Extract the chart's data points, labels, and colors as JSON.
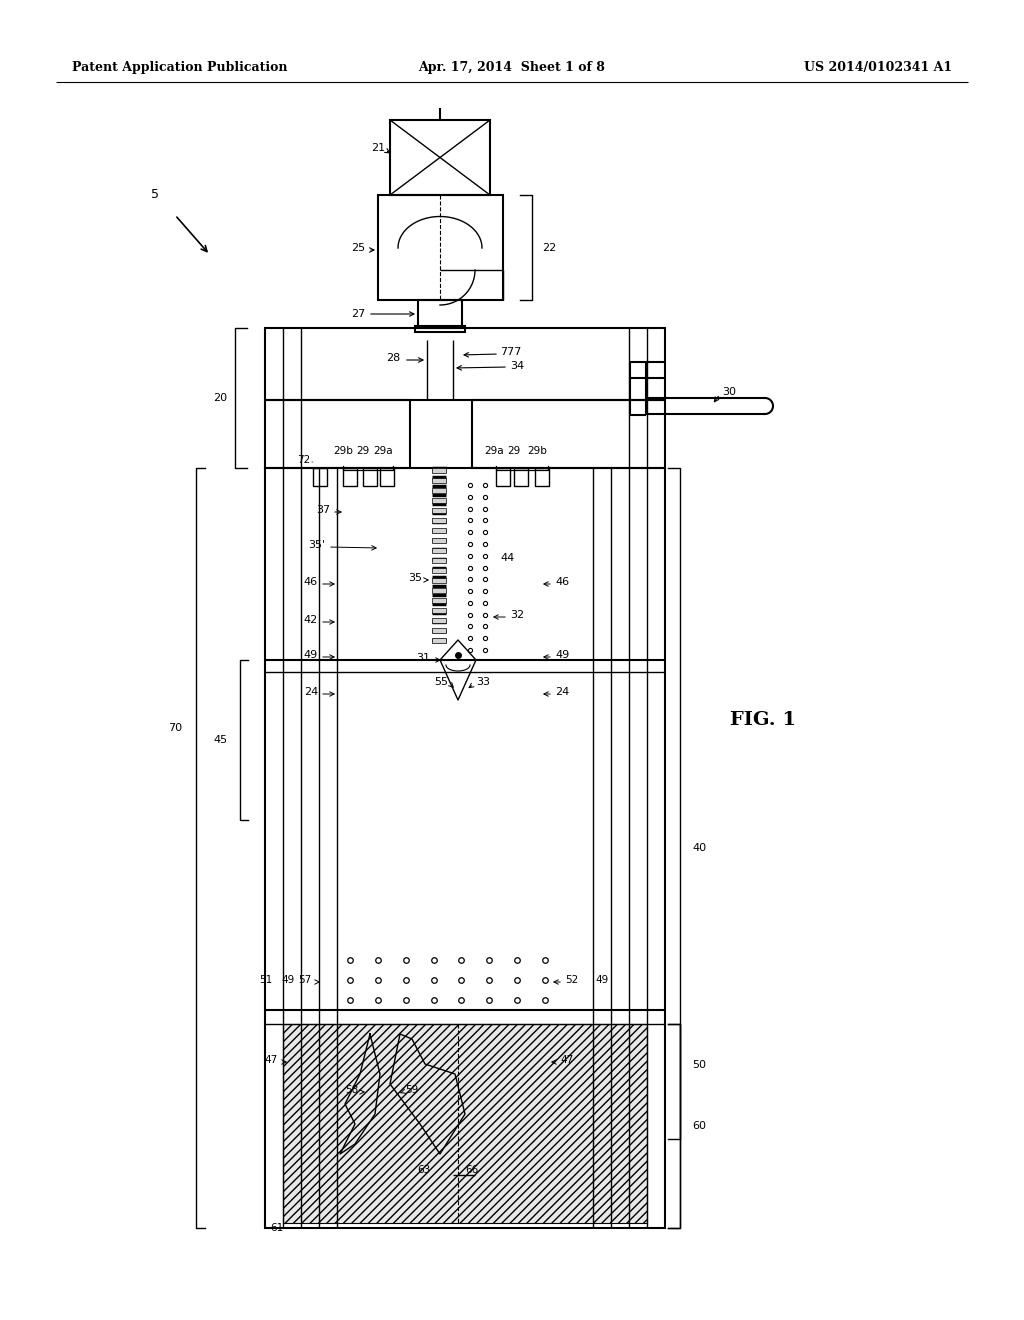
{
  "header_left": "Patent Application Publication",
  "header_center": "Apr. 17, 2014  Sheet 1 of 8",
  "header_right": "US 2014/0102341 A1",
  "fig_label": "FIG. 1",
  "bg": "#ffffff"
}
